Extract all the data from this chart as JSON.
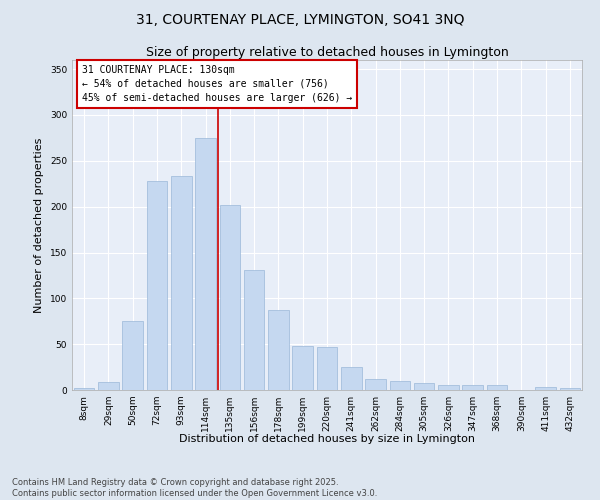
{
  "title1": "31, COURTENAY PLACE, LYMINGTON, SO41 3NQ",
  "title2": "Size of property relative to detached houses in Lymington",
  "xlabel": "Distribution of detached houses by size in Lymington",
  "ylabel": "Number of detached properties",
  "categories": [
    "8sqm",
    "29sqm",
    "50sqm",
    "72sqm",
    "93sqm",
    "114sqm",
    "135sqm",
    "156sqm",
    "178sqm",
    "199sqm",
    "220sqm",
    "241sqm",
    "262sqm",
    "284sqm",
    "305sqm",
    "326sqm",
    "347sqm",
    "368sqm",
    "390sqm",
    "411sqm",
    "432sqm"
  ],
  "values": [
    2,
    9,
    75,
    228,
    233,
    275,
    202,
    131,
    87,
    48,
    47,
    25,
    12,
    10,
    8,
    6,
    5,
    6,
    0,
    3,
    2
  ],
  "bar_color": "#c5d8f0",
  "bar_edge_color": "#9ab8d8",
  "vline_color": "#cc0000",
  "annotation_text": "31 COURTENAY PLACE: 130sqm\n← 54% of detached houses are smaller (756)\n45% of semi-detached houses are larger (626) →",
  "annotation_box_color": "#ffffff",
  "annotation_box_edge_color": "#cc0000",
  "ylim": [
    0,
    360
  ],
  "yticks": [
    0,
    50,
    100,
    150,
    200,
    250,
    300,
    350
  ],
  "footer_text": "Contains HM Land Registry data © Crown copyright and database right 2025.\nContains public sector information licensed under the Open Government Licence v3.0.",
  "bg_color": "#dde6f0",
  "plot_bg_color": "#e8eef8",
  "grid_color": "#ffffff",
  "title1_fontsize": 10,
  "title2_fontsize": 9,
  "axis_label_fontsize": 8,
  "tick_fontsize": 6.5,
  "annotation_fontsize": 7,
  "footer_fontsize": 6
}
